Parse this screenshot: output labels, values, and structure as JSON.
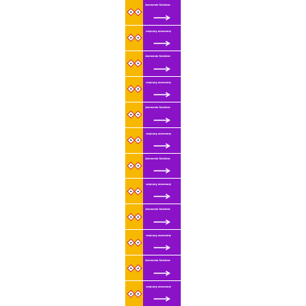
{
  "product": {
    "label_text": "Ammonia Solution",
    "colors": {
      "band": "#8a13c8",
      "hazard_band": "#f6b800",
      "text": "#ffffff",
      "arrow": "#ffffff",
      "pictogram_border": "#d42020"
    },
    "icons": [
      "ghs-corrosive-icon",
      "ghs-environment-icon",
      "flow-arrow-icon"
    ]
  },
  "labels": [
    {
      "text": "Ammonia Solution",
      "orientation": "upright",
      "arrow": "right"
    },
    {
      "text": "Ammonia Solution",
      "orientation": "inverted",
      "arrow": "right"
    },
    {
      "text": "Ammonia Solution",
      "orientation": "upright",
      "arrow": "right"
    },
    {
      "text": "Ammonia Solution",
      "orientation": "inverted",
      "arrow": "right"
    },
    {
      "text": "Ammonia Solution",
      "orientation": "upright",
      "arrow": "right"
    },
    {
      "text": "Ammonia Solution",
      "orientation": "inverted",
      "arrow": "right"
    },
    {
      "text": "Ammonia Solution",
      "orientation": "upright",
      "arrow": "right"
    },
    {
      "text": "Ammonia Solution",
      "orientation": "inverted",
      "arrow": "right"
    },
    {
      "text": "Ammonia Solution",
      "orientation": "upright",
      "arrow": "right"
    },
    {
      "text": "Ammonia Solution",
      "orientation": "inverted",
      "arrow": "right"
    },
    {
      "text": "Ammonia Solution",
      "orientation": "upright",
      "arrow": "right"
    },
    {
      "text": "Ammonia Solution",
      "orientation": "inverted",
      "arrow": "right"
    }
  ]
}
